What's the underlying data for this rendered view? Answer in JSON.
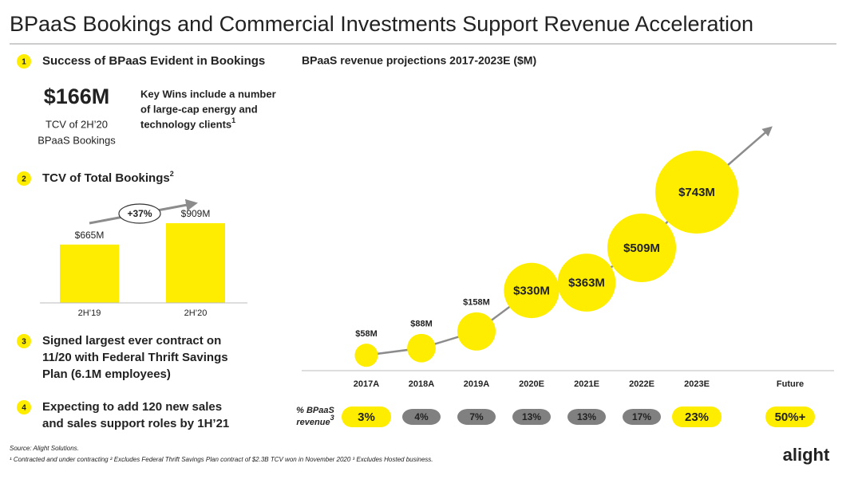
{
  "title": "BPaaS Bookings and Commercial Investments Support Revenue Acceleration",
  "points": [
    {
      "number": "1",
      "lines": [
        "Success of BPaaS Evident in Bookings"
      ]
    },
    {
      "number": "2",
      "lines": [
        "TCV of Total Bookings"
      ],
      "sup": "2"
    },
    {
      "number": "3",
      "lines": [
        "Signed largest ever contract on",
        "11/20 with Federal Thrift Savings",
        "Plan (6.1M employees)"
      ]
    },
    {
      "number": "4",
      "lines": [
        "Expecting to add 120 new sales",
        "and sales support roles by 1H’21"
      ]
    }
  ],
  "highlight": {
    "value": "$166M",
    "caption": [
      "TCV of 2H’20",
      "BPaaS Bookings"
    ],
    "note": [
      "Key Wins include a number",
      "of large-cap energy and",
      "technology clients"
    ],
    "note_sup": "1"
  },
  "chart_data": [
    {
      "type": "bar",
      "categories": [
        "2H’19",
        "2H’20"
      ],
      "values": [
        665,
        909
      ],
      "value_labels": [
        "$665M",
        "$909M"
      ],
      "annotation": "+37%",
      "color": "#ffed00",
      "ylim": [
        0,
        1000
      ]
    },
    {
      "type": "bubble",
      "title": "BPaaS revenue projections 2017-2023E ($M)",
      "categories": [
        "2017A",
        "2018A",
        "2019A",
        "2020E",
        "2021E",
        "2022E",
        "2023E",
        "Future"
      ],
      "values": [
        58,
        88,
        158,
        330,
        363,
        509,
        743,
        null
      ],
      "value_labels": [
        "$58M",
        "$88M",
        "$158M",
        "$330M",
        "$363M",
        "$509M",
        "$743M",
        null
      ],
      "color": "#ffed00",
      "ylim": [
        0,
        800
      ],
      "share_label": [
        "% BPaaS",
        "revenue"
      ],
      "share_label_sup": "3",
      "share_values": [
        3,
        4,
        7,
        13,
        13,
        17,
        23,
        50
      ],
      "share_value_labels": [
        "3%",
        "4%",
        "7%",
        "13%",
        "13%",
        "17%",
        "23%",
        "50%+"
      ],
      "share_colors": [
        "#ffed00",
        "#808080",
        "#808080",
        "#808080",
        "#808080",
        "#808080",
        "#ffed00",
        "#ffed00"
      ]
    }
  ],
  "footnotes": [
    "Source: Alight Solutions.",
    "¹ Contracted and under contracting ² Excludes Federal Thrift Savings Plan contract of $2.3B TCV won in November 2020 ³ Excludes Hosted business."
  ],
  "logo": "alight"
}
